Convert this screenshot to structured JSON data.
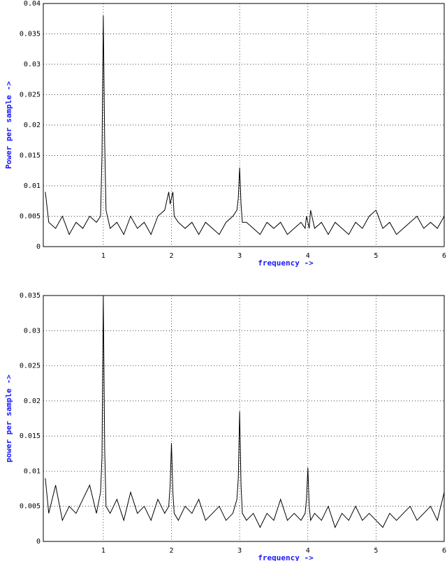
{
  "chart_data": [
    {
      "type": "line",
      "xlabel": "frequency ->",
      "ylabel": "Power per sample ->",
      "xlim": [
        0.12,
        6
      ],
      "ylim": [
        0,
        0.04
      ],
      "xticks": [
        1,
        2,
        3,
        4,
        5,
        6
      ],
      "yticks": [
        0,
        0.005,
        0.01,
        0.015,
        0.02,
        0.025,
        0.03,
        0.035,
        0.04
      ],
      "grid": true,
      "series": [
        {
          "color": "#000000",
          "x": [
            0.15,
            0.2,
            0.3,
            0.4,
            0.5,
            0.6,
            0.7,
            0.8,
            0.9,
            0.96,
            0.98,
            1.0,
            1.02,
            1.04,
            1.1,
            1.2,
            1.3,
            1.4,
            1.5,
            1.6,
            1.7,
            1.8,
            1.9,
            1.96,
            1.98,
            2.0,
            2.02,
            2.04,
            2.1,
            2.2,
            2.3,
            2.4,
            2.5,
            2.6,
            2.7,
            2.8,
            2.9,
            2.96,
            2.98,
            3.0,
            3.02,
            3.04,
            3.1,
            3.2,
            3.3,
            3.4,
            3.5,
            3.6,
            3.7,
            3.8,
            3.9,
            3.96,
            3.98,
            4.0,
            4.02,
            4.04,
            4.1,
            4.2,
            4.3,
            4.4,
            4.5,
            4.6,
            4.7,
            4.8,
            4.9,
            5.0,
            5.1,
            5.2,
            5.3,
            5.4,
            5.5,
            5.6,
            5.7,
            5.8,
            5.9,
            6.0
          ],
          "values": [
            0.009,
            0.004,
            0.003,
            0.005,
            0.002,
            0.004,
            0.003,
            0.005,
            0.004,
            0.005,
            0.015,
            0.038,
            0.017,
            0.006,
            0.003,
            0.004,
            0.002,
            0.005,
            0.003,
            0.004,
            0.002,
            0.005,
            0.006,
            0.009,
            0.007,
            0.008,
            0.009,
            0.005,
            0.004,
            0.003,
            0.004,
            0.002,
            0.004,
            0.003,
            0.002,
            0.004,
            0.005,
            0.006,
            0.008,
            0.013,
            0.007,
            0.004,
            0.004,
            0.003,
            0.002,
            0.004,
            0.003,
            0.004,
            0.002,
            0.003,
            0.004,
            0.003,
            0.005,
            0.004,
            0.003,
            0.006,
            0.003,
            0.004,
            0.002,
            0.004,
            0.003,
            0.002,
            0.004,
            0.003,
            0.005,
            0.006,
            0.003,
            0.004,
            0.002,
            0.003,
            0.004,
            0.005,
            0.003,
            0.004,
            0.003,
            0.005
          ]
        }
      ]
    },
    {
      "type": "line",
      "xlabel": "frequency ->",
      "ylabel": "power per sample ->",
      "xlim": [
        0.12,
        6
      ],
      "ylim": [
        0,
        0.035
      ],
      "xticks": [
        1,
        2,
        3,
        4,
        5,
        6
      ],
      "yticks": [
        0,
        0.005,
        0.01,
        0.015,
        0.02,
        0.025,
        0.03,
        0.035
      ],
      "grid": true,
      "series": [
        {
          "color": "#000000",
          "x": [
            0.15,
            0.2,
            0.3,
            0.4,
            0.5,
            0.6,
            0.7,
            0.8,
            0.9,
            0.96,
            0.98,
            1.0,
            1.02,
            1.04,
            1.1,
            1.2,
            1.3,
            1.4,
            1.5,
            1.6,
            1.7,
            1.8,
            1.9,
            1.96,
            1.98,
            2.0,
            2.02,
            2.04,
            2.1,
            2.2,
            2.3,
            2.4,
            2.5,
            2.6,
            2.7,
            2.8,
            2.9,
            2.96,
            2.98,
            3.0,
            3.02,
            3.04,
            3.1,
            3.2,
            3.3,
            3.4,
            3.5,
            3.6,
            3.7,
            3.8,
            3.9,
            3.96,
            3.98,
            4.0,
            4.02,
            4.04,
            4.1,
            4.2,
            4.3,
            4.4,
            4.5,
            4.6,
            4.7,
            4.8,
            4.9,
            5.0,
            5.1,
            5.2,
            5.3,
            5.4,
            5.5,
            5.6,
            5.7,
            5.8,
            5.9,
            6.0
          ],
          "values": [
            0.009,
            0.004,
            0.008,
            0.003,
            0.005,
            0.004,
            0.006,
            0.008,
            0.004,
            0.007,
            0.012,
            0.035,
            0.013,
            0.005,
            0.004,
            0.006,
            0.003,
            0.007,
            0.004,
            0.005,
            0.003,
            0.006,
            0.004,
            0.005,
            0.008,
            0.014,
            0.007,
            0.004,
            0.003,
            0.005,
            0.004,
            0.006,
            0.003,
            0.004,
            0.005,
            0.003,
            0.004,
            0.006,
            0.009,
            0.0185,
            0.008,
            0.004,
            0.003,
            0.004,
            0.002,
            0.004,
            0.003,
            0.006,
            0.003,
            0.004,
            0.003,
            0.004,
            0.006,
            0.0105,
            0.005,
            0.003,
            0.004,
            0.003,
            0.005,
            0.002,
            0.004,
            0.003,
            0.005,
            0.003,
            0.004,
            0.003,
            0.002,
            0.004,
            0.003,
            0.004,
            0.005,
            0.003,
            0.004,
            0.005,
            0.003,
            0.007
          ]
        }
      ]
    }
  ]
}
